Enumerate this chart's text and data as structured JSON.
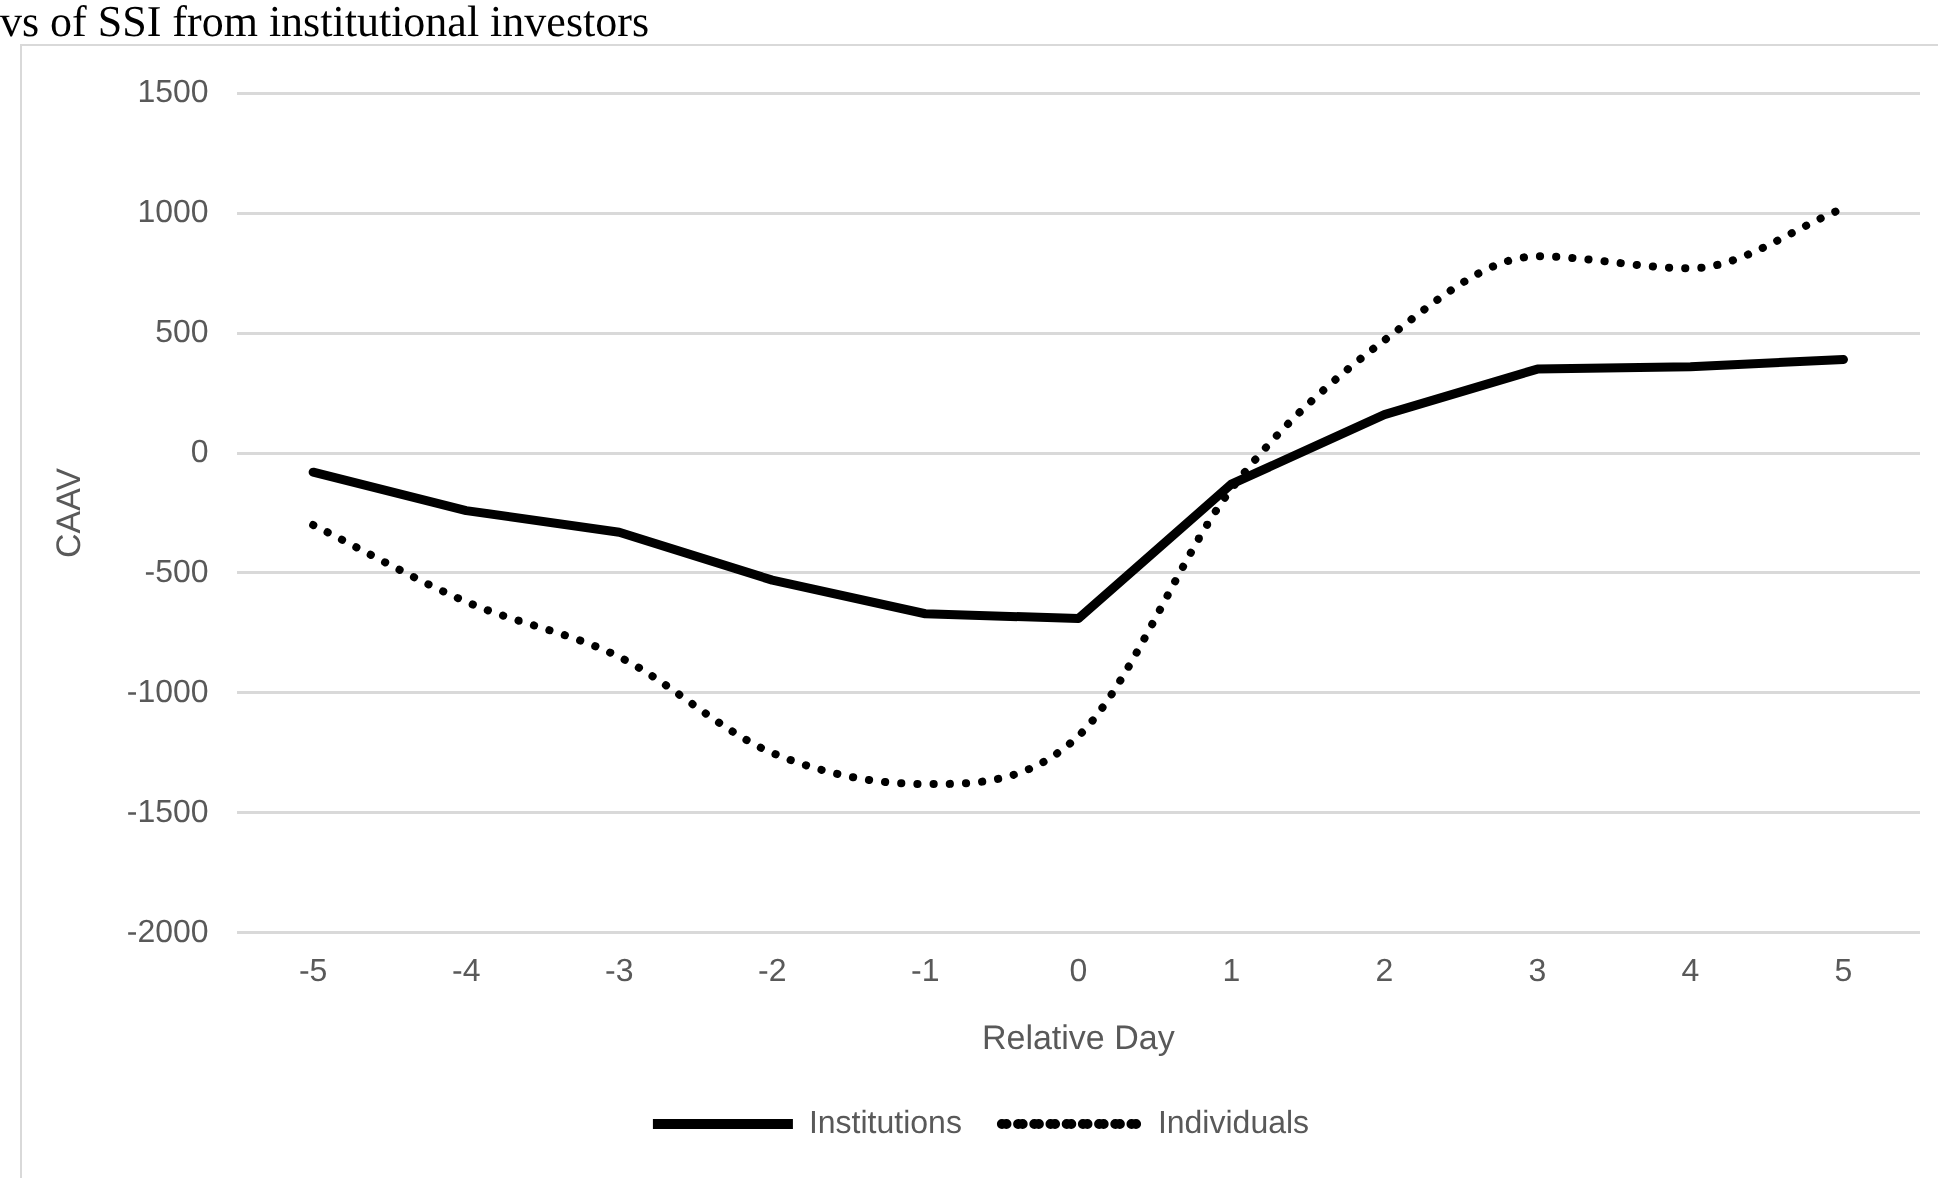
{
  "chart_data": {
    "type": "line",
    "annotations": [
      "vs of SSI from institutional investors"
    ],
    "xlabel": "Relative Day",
    "ylabel": "CAAV",
    "categories": [
      "-5",
      "-4",
      "-3",
      "-2",
      "-1",
      "0",
      "1",
      "2",
      "3",
      "4",
      "5"
    ],
    "series": [
      {
        "name": "Institutions",
        "color": "#000000",
        "line_style": "solid",
        "values": [
          -80,
          -240,
          -330,
          -530,
          -670,
          -690,
          -130,
          160,
          350,
          360,
          390
        ]
      },
      {
        "name": "Individuals",
        "color": "#000000",
        "line_style": "dotted",
        "values": [
          -300,
          -620,
          -850,
          -1250,
          -1380,
          -1180,
          -150,
          470,
          820,
          770,
          1020
        ]
      }
    ],
    "ylim": [
      -2000,
      1500
    ],
    "yticks": [
      -2000,
      -1500,
      -1000,
      -500,
      0,
      500,
      1000,
      1500
    ],
    "grid": "y",
    "legend": "bottom",
    "marker": "none"
  }
}
